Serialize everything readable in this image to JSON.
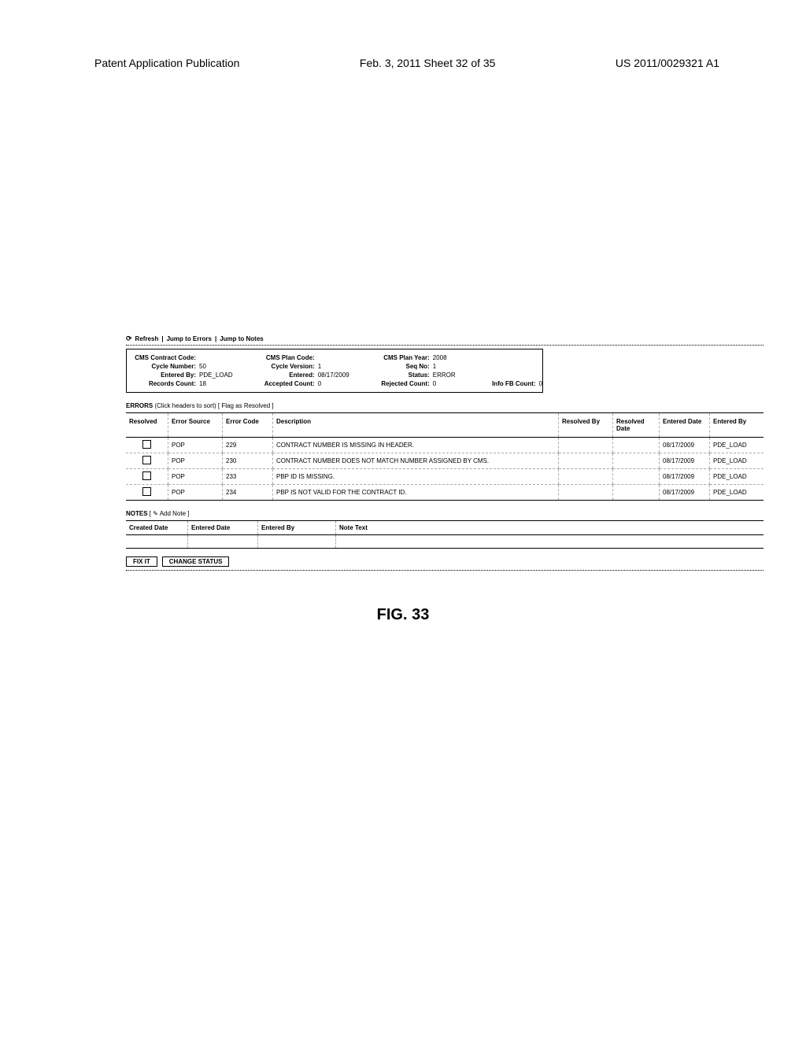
{
  "page_header": {
    "left": "Patent Application Publication",
    "center": "Feb. 3, 2011  Sheet 32 of 35",
    "right": "US 2011/0029321 A1"
  },
  "toolbar": {
    "refresh": "Refresh",
    "jump_errors": "Jump to Errors",
    "jump_notes": "Jump to Notes"
  },
  "info": {
    "col1": {
      "cms_contract_code_label": "CMS Contract Code:",
      "cms_contract_code": "",
      "cycle_number_label": "Cycle Number:",
      "cycle_number": "50",
      "entered_by_label": "Entered By:",
      "entered_by": "PDE_LOAD",
      "records_count_label": "Records Count:",
      "records_count": "18"
    },
    "col2": {
      "cms_plan_code_label": "CMS Plan Code:",
      "cms_plan_code": "",
      "cycle_version_label": "Cycle Version:",
      "cycle_version": "1",
      "entered_label": "Entered:",
      "entered": "08/17/2009",
      "accepted_count_label": "Accepted Count:",
      "accepted_count": "0"
    },
    "col3": {
      "cms_plan_year_label": "CMS Plan Year:",
      "cms_plan_year": "2008",
      "seq_no_label": "Seq No:",
      "seq_no": "1",
      "status_label": "Status:",
      "status": "ERROR",
      "rejected_count_label": "Rejected Count:",
      "rejected_count": "0"
    },
    "col4": {
      "info_fb_count_label": "Info FB Count:",
      "info_fb_count": "0"
    }
  },
  "errors_section": {
    "title_bold": "ERRORS",
    "title_rest": " (Click headers to sort)  [ ",
    "flag_link": "Flag as Resolved",
    "title_end": " ]",
    "columns": {
      "resolved": "Resolved",
      "error_source": "Error Source",
      "error_code": "Error Code",
      "description": "Description",
      "resolved_by": "Resolved By",
      "resolved_date": "Resolved Date",
      "entered_date": "Entered Date",
      "entered_by": "Entered By"
    },
    "rows": [
      {
        "source": "POP",
        "code": "229",
        "desc": "CONTRACT NUMBER IS MISSING IN HEADER.",
        "resolved_by": "",
        "resolved_date": "",
        "entered_date": "08/17/2009",
        "entered_by": "PDE_LOAD"
      },
      {
        "source": "POP",
        "code": "230",
        "desc": "CONTRACT NUMBER DOES NOT MATCH NUMBER ASSIGNED BY CMS.",
        "resolved_by": "",
        "resolved_date": "",
        "entered_date": "08/17/2009",
        "entered_by": "PDE_LOAD"
      },
      {
        "source": "POP",
        "code": "233",
        "desc": "PBP ID IS MISSING.",
        "resolved_by": "",
        "resolved_date": "",
        "entered_date": "08/17/2009",
        "entered_by": "PDE_LOAD"
      },
      {
        "source": "POP",
        "code": "234",
        "desc": "PBP IS NOT VALID FOR THE CONTRACT ID.",
        "resolved_by": "",
        "resolved_date": "",
        "entered_date": "08/17/2009",
        "entered_by": "PDE_LOAD"
      }
    ]
  },
  "notes_section": {
    "title_bold": "NOTES",
    "add_prefix": " [ ✎ ",
    "add_link": "Add Note",
    "add_suffix": " ]",
    "columns": {
      "created_date": "Created Date",
      "entered_date": "Entered Date",
      "entered_by": "Entered By",
      "note_text": "Note Text"
    }
  },
  "buttons": {
    "fix_it": "FIX IT",
    "change_status": "CHANGE STATUS"
  },
  "figure_caption": "FIG. 33"
}
